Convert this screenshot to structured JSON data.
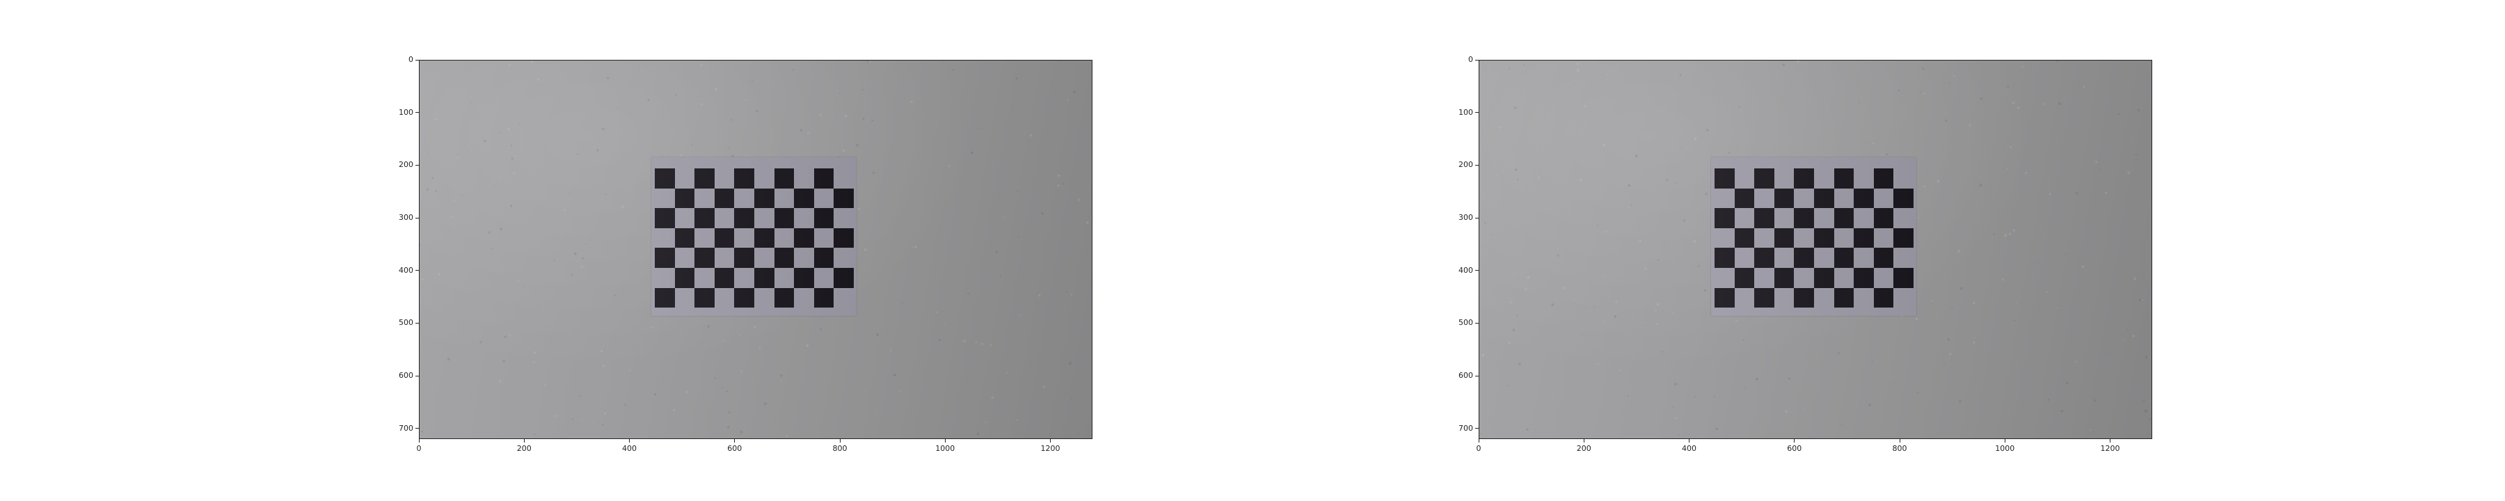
{
  "figure": {
    "panels": [
      {
        "name": "left",
        "x_ticks": [
          "0",
          "200",
          "400",
          "600",
          "800",
          "1000",
          "1200"
        ],
        "y_ticks": [
          "0",
          "100",
          "200",
          "300",
          "400",
          "500",
          "600",
          "700"
        ],
        "x_range": [
          0,
          1280
        ],
        "y_range": [
          720,
          0
        ],
        "content": "photo of a checkerboard calibration pattern on a grey textured wall"
      },
      {
        "name": "right",
        "x_ticks": [
          "0",
          "200",
          "400",
          "600",
          "800",
          "1000",
          "1200"
        ],
        "y_ticks": [
          "0",
          "100",
          "200",
          "300",
          "400",
          "500",
          "600",
          "700"
        ],
        "x_range": [
          0,
          1280
        ],
        "y_range": [
          720,
          0
        ],
        "content": "photo of a checkerboard calibration pattern on a grey textured wall"
      }
    ],
    "colors": {
      "wall": "#9a9a9c",
      "board_light": "#9c9aa6",
      "board_dark": "#1a181e"
    }
  }
}
